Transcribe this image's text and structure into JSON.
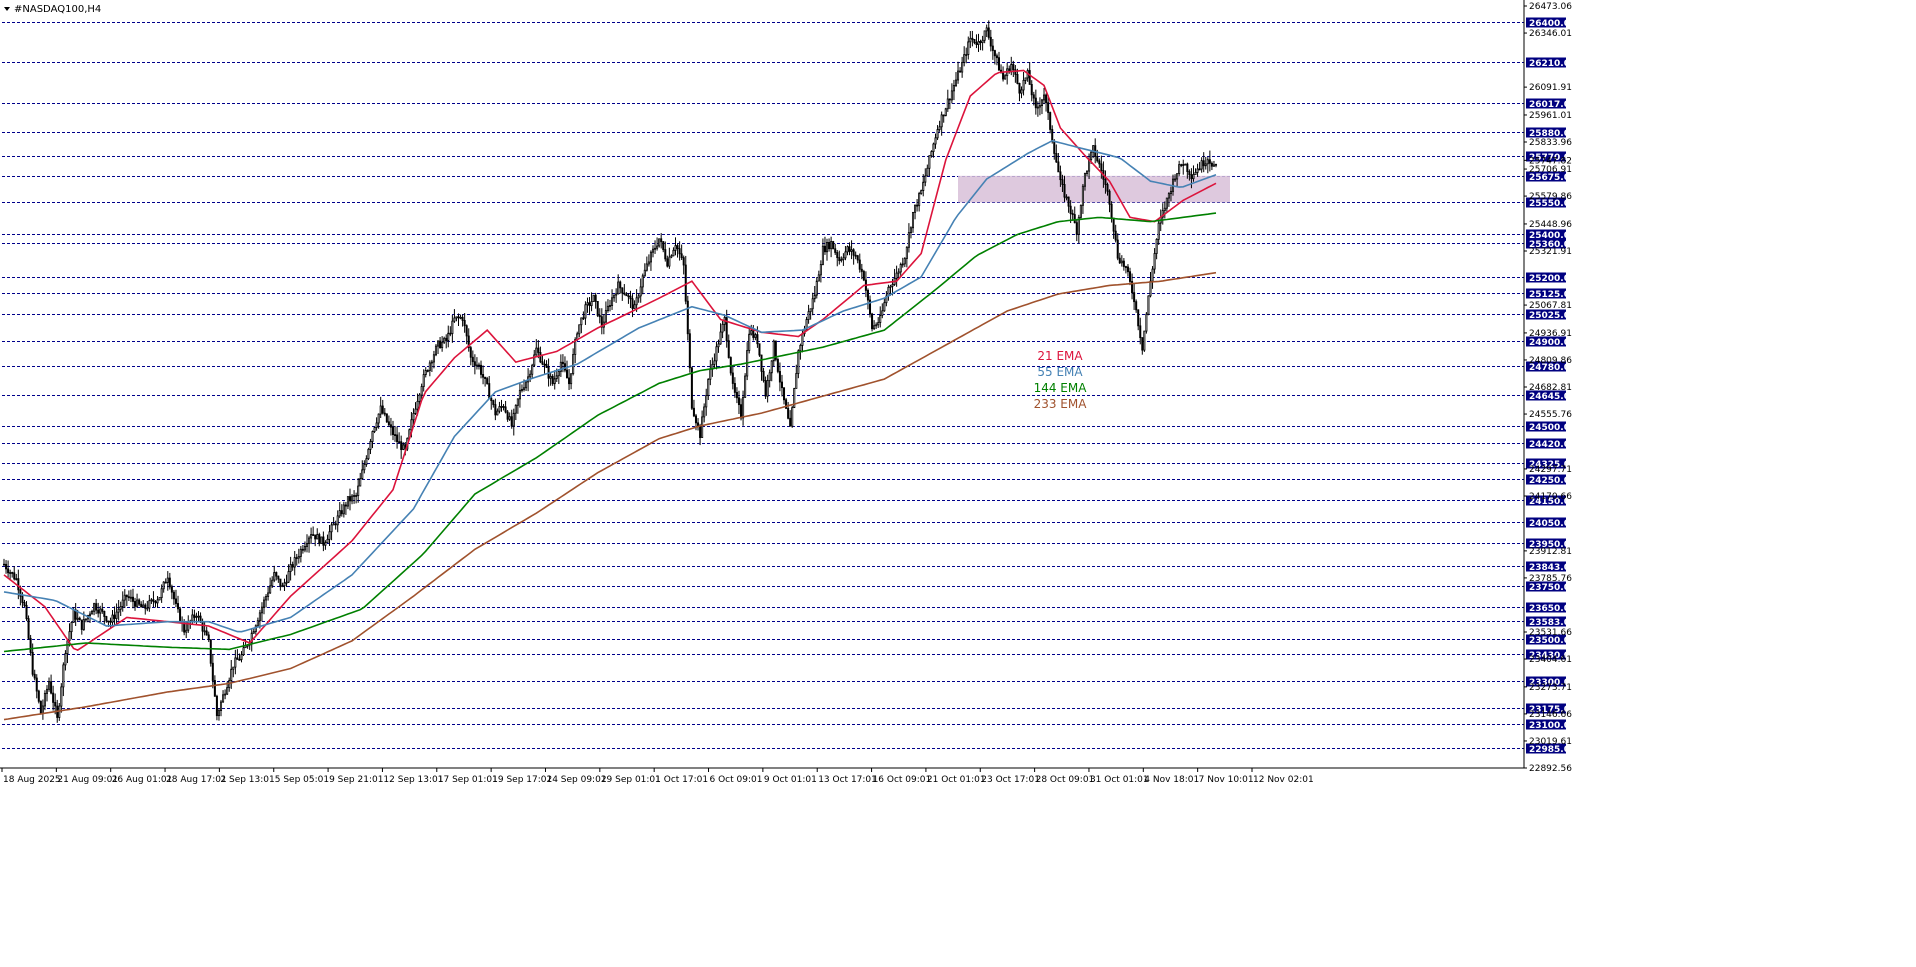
{
  "chart_data": {
    "type": "candlestick",
    "title": "#NASDAQ100,H4",
    "ylim": [
      22892.56,
      26473.06
    ],
    "price_scale_labels": [
      "26473.06",
      "26346.01",
      "26091.91",
      "25961.01",
      "25833.96",
      "25747.82",
      "25706.91",
      "25579.86",
      "25448.96",
      "25321.91",
      "25067.81",
      "24936.91",
      "24809.86",
      "24682.81",
      "24555.76",
      "24297.71",
      "24170.66",
      "23912.81",
      "23785.76",
      "23531.66",
      "23404.61",
      "23273.71",
      "23146.66",
      "23019.61",
      "22892.56"
    ],
    "levels": [
      "26400.00",
      "26210.00",
      "26017.00",
      "25880.00",
      "25770.00",
      "25675.00",
      "25550.00",
      "25400.00",
      "25360.00",
      "25200.00",
      "25125.00",
      "25025.00",
      "24900.00",
      "24780.00",
      "24645.00",
      "24500.00",
      "24420.00",
      "24325.00",
      "24250.00",
      "24150.00",
      "24050.00",
      "23950.00",
      "23843.00",
      "23750.00",
      "23650.00",
      "23583.00",
      "23500.00",
      "23430.00",
      "23300.00",
      "23175.00",
      "23100.00",
      "22985.00"
    ],
    "x_labels": [
      "18 Aug 2025",
      "21 Aug 09:01",
      "26 Aug 01:01",
      "28 Aug 17:01",
      "2 Sep 13:01",
      "5 Sep 05:01",
      "9 Sep 21:01",
      "12 Sep 13:01",
      "17 Sep 01:01",
      "19 Sep 17:01",
      "24 Sep 09:01",
      "29 Sep 01:01",
      "1 Oct 17:01",
      "6 Oct 09:01",
      "9 Oct 01:01",
      "13 Oct 17:01",
      "16 Oct 09:01",
      "21 Oct 01:01",
      "23 Oct 17:01",
      "28 Oct 09:01",
      "31 Oct 01:01",
      "4 Nov 18:01",
      "7 Nov 10:01",
      "12 Nov 02:01"
    ],
    "ema_labels": [
      {
        "name": "21 EMA",
        "color": "#dc143c"
      },
      {
        "name": "55 EMA",
        "color": "#4682b4"
      },
      {
        "name": "144 EMA",
        "color": "#008000"
      },
      {
        "name": "233 EMA",
        "color": "#a0522d"
      }
    ],
    "zone": {
      "from": 25550,
      "to": 25675,
      "color": "#d8bfd8"
    },
    "price_path": [
      [
        0,
        23850
      ],
      [
        6,
        23780
      ],
      [
        10,
        23650
      ],
      [
        14,
        23350
      ],
      [
        18,
        23150
      ],
      [
        22,
        23300
      ],
      [
        26,
        23120
      ],
      [
        30,
        23450
      ],
      [
        34,
        23620
      ],
      [
        38,
        23560
      ],
      [
        44,
        23660
      ],
      [
        52,
        23580
      ],
      [
        60,
        23700
      ],
      [
        68,
        23640
      ],
      [
        76,
        23700
      ],
      [
        80,
        23800
      ],
      [
        84,
        23650
      ],
      [
        88,
        23540
      ],
      [
        94,
        23620
      ],
      [
        100,
        23480
      ],
      [
        104,
        23140
      ],
      [
        108,
        23260
      ],
      [
        112,
        23380
      ],
      [
        116,
        23420
      ],
      [
        120,
        23500
      ],
      [
        124,
        23600
      ],
      [
        128,
        23700
      ],
      [
        132,
        23800
      ],
      [
        136,
        23740
      ],
      [
        140,
        23830
      ],
      [
        144,
        23900
      ],
      [
        150,
        24000
      ],
      [
        156,
        23950
      ],
      [
        162,
        24050
      ],
      [
        168,
        24150
      ],
      [
        172,
        24170
      ],
      [
        176,
        24320
      ],
      [
        180,
        24480
      ],
      [
        184,
        24580
      ],
      [
        188,
        24500
      ],
      [
        192,
        24430
      ],
      [
        196,
        24380
      ],
      [
        200,
        24560
      ],
      [
        204,
        24700
      ],
      [
        208,
        24800
      ],
      [
        212,
        24880
      ],
      [
        216,
        24900
      ],
      [
        220,
        25000
      ],
      [
        224,
        25010
      ],
      [
        228,
        24820
      ],
      [
        232,
        24780
      ],
      [
        236,
        24680
      ],
      [
        240,
        24560
      ],
      [
        244,
        24600
      ],
      [
        248,
        24500
      ],
      [
        252,
        24660
      ],
      [
        256,
        24730
      ],
      [
        260,
        24860
      ],
      [
        264,
        24780
      ],
      [
        268,
        24700
      ],
      [
        272,
        24800
      ],
      [
        276,
        24700
      ],
      [
        280,
        24950
      ],
      [
        284,
        25050
      ],
      [
        288,
        25100
      ],
      [
        292,
        24970
      ],
      [
        296,
        25080
      ],
      [
        300,
        25160
      ],
      [
        304,
        25120
      ],
      [
        308,
        25050
      ],
      [
        312,
        25200
      ],
      [
        316,
        25300
      ],
      [
        320,
        25380
      ],
      [
        324,
        25270
      ],
      [
        328,
        25360
      ],
      [
        332,
        25250
      ],
      [
        336,
        24600
      ],
      [
        340,
        24460
      ],
      [
        344,
        24720
      ],
      [
        348,
        24860
      ],
      [
        352,
        25000
      ],
      [
        356,
        24680
      ],
      [
        360,
        24550
      ],
      [
        364,
        24950
      ],
      [
        368,
        24900
      ],
      [
        372,
        24650
      ],
      [
        376,
        24880
      ],
      [
        380,
        24660
      ],
      [
        384,
        24480
      ],
      [
        388,
        24850
      ],
      [
        392,
        25000
      ],
      [
        396,
        25120
      ],
      [
        400,
        25330
      ],
      [
        404,
        25360
      ],
      [
        408,
        25280
      ],
      [
        412,
        25330
      ],
      [
        416,
        25300
      ],
      [
        420,
        25200
      ],
      [
        424,
        24960
      ],
      [
        428,
        25000
      ],
      [
        432,
        25150
      ],
      [
        436,
        25210
      ],
      [
        440,
        25300
      ],
      [
        444,
        25500
      ],
      [
        448,
        25600
      ],
      [
        452,
        25750
      ],
      [
        456,
        25900
      ],
      [
        460,
        26000
      ],
      [
        464,
        26100
      ],
      [
        468,
        26200
      ],
      [
        472,
        26320
      ],
      [
        476,
        26300
      ],
      [
        480,
        26360
      ],
      [
        484,
        26240
      ],
      [
        488,
        26130
      ],
      [
        492,
        26200
      ],
      [
        496,
        26080
      ],
      [
        500,
        26150
      ],
      [
        504,
        25980
      ],
      [
        508,
        26060
      ],
      [
        512,
        25850
      ],
      [
        516,
        25640
      ],
      [
        520,
        25540
      ],
      [
        524,
        25420
      ],
      [
        528,
        25680
      ],
      [
        532,
        25800
      ],
      [
        536,
        25700
      ],
      [
        540,
        25560
      ],
      [
        544,
        25300
      ],
      [
        548,
        25240
      ],
      [
        552,
        25100
      ],
      [
        556,
        24870
      ],
      [
        560,
        25180
      ],
      [
        564,
        25440
      ],
      [
        568,
        25560
      ],
      [
        572,
        25680
      ],
      [
        576,
        25740
      ],
      [
        580,
        25680
      ],
      [
        584,
        25720
      ],
      [
        588,
        25760
      ],
      [
        592,
        25710
      ]
    ],
    "ema_series": [
      {
        "name": "21 EMA",
        "values": [
          [
            0,
            23800
          ],
          [
            20,
            23650
          ],
          [
            35,
            23440
          ],
          [
            60,
            23600
          ],
          [
            100,
            23560
          ],
          [
            120,
            23480
          ],
          [
            140,
            23700
          ],
          [
            170,
            23960
          ],
          [
            190,
            24200
          ],
          [
            205,
            24650
          ],
          [
            220,
            24820
          ],
          [
            236,
            24950
          ],
          [
            250,
            24800
          ],
          [
            270,
            24850
          ],
          [
            290,
            24960
          ],
          [
            320,
            25100
          ],
          [
            336,
            25180
          ],
          [
            350,
            25000
          ],
          [
            370,
            24940
          ],
          [
            388,
            24920
          ],
          [
            400,
            25000
          ],
          [
            420,
            25160
          ],
          [
            436,
            25180
          ],
          [
            448,
            25310
          ],
          [
            460,
            25750
          ],
          [
            472,
            26050
          ],
          [
            485,
            26160
          ],
          [
            498,
            26170
          ],
          [
            508,
            26100
          ],
          [
            516,
            25900
          ],
          [
            528,
            25770
          ],
          [
            540,
            25650
          ],
          [
            550,
            25480
          ],
          [
            562,
            25460
          ],
          [
            576,
            25560
          ],
          [
            592,
            25640
          ]
        ]
      },
      {
        "name": "55 EMA",
        "values": [
          [
            0,
            23720
          ],
          [
            25,
            23680
          ],
          [
            50,
            23560
          ],
          [
            80,
            23580
          ],
          [
            100,
            23580
          ],
          [
            115,
            23530
          ],
          [
            140,
            23600
          ],
          [
            170,
            23800
          ],
          [
            200,
            24110
          ],
          [
            220,
            24450
          ],
          [
            240,
            24660
          ],
          [
            260,
            24730
          ],
          [
            280,
            24790
          ],
          [
            310,
            24960
          ],
          [
            336,
            25060
          ],
          [
            352,
            25020
          ],
          [
            370,
            24940
          ],
          [
            390,
            24950
          ],
          [
            410,
            25040
          ],
          [
            430,
            25100
          ],
          [
            448,
            25200
          ],
          [
            465,
            25480
          ],
          [
            480,
            25660
          ],
          [
            500,
            25780
          ],
          [
            512,
            25840
          ],
          [
            528,
            25800
          ],
          [
            545,
            25760
          ],
          [
            560,
            25650
          ],
          [
            575,
            25620
          ],
          [
            592,
            25680
          ]
        ]
      },
      {
        "name": "144 EMA",
        "values": [
          [
            0,
            23440
          ],
          [
            40,
            23480
          ],
          [
            80,
            23460
          ],
          [
            110,
            23450
          ],
          [
            140,
            23520
          ],
          [
            175,
            23640
          ],
          [
            205,
            23900
          ],
          [
            230,
            24180
          ],
          [
            260,
            24350
          ],
          [
            290,
            24550
          ],
          [
            320,
            24700
          ],
          [
            340,
            24760
          ],
          [
            360,
            24790
          ],
          [
            380,
            24830
          ],
          [
            400,
            24870
          ],
          [
            430,
            24950
          ],
          [
            455,
            25140
          ],
          [
            475,
            25300
          ],
          [
            495,
            25400
          ],
          [
            515,
            25460
          ],
          [
            535,
            25480
          ],
          [
            560,
            25460
          ],
          [
            592,
            25500
          ]
        ]
      },
      {
        "name": "233 EMA",
        "values": [
          [
            0,
            23120
          ],
          [
            40,
            23180
          ],
          [
            80,
            23250
          ],
          [
            110,
            23290
          ],
          [
            140,
            23360
          ],
          [
            170,
            23490
          ],
          [
            200,
            23700
          ],
          [
            230,
            23920
          ],
          [
            260,
            24090
          ],
          [
            290,
            24280
          ],
          [
            320,
            24440
          ],
          [
            340,
            24500
          ],
          [
            370,
            24560
          ],
          [
            400,
            24640
          ],
          [
            430,
            24720
          ],
          [
            460,
            24880
          ],
          [
            490,
            25040
          ],
          [
            515,
            25120
          ],
          [
            540,
            25160
          ],
          [
            565,
            25180
          ],
          [
            592,
            25220
          ]
        ]
      }
    ]
  }
}
